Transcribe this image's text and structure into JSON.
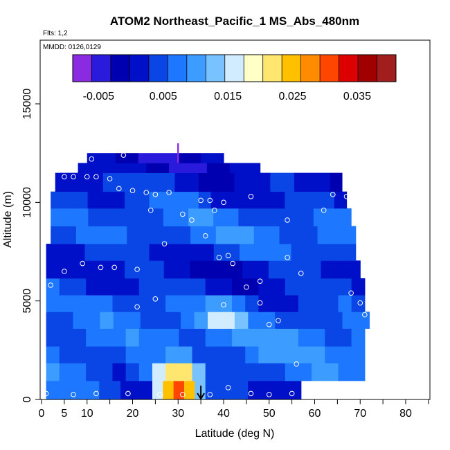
{
  "chart_data": {
    "type": "heatmap",
    "title": "ATOM2 Northeast_Pacific_1 MS_Abs_480nm",
    "flights_label": "Flts: 1,2",
    "dates_label": "MMDD: 0126,0129",
    "xlabel": "Latitude (deg N)",
    "ylabel": "Altitude (m)",
    "xlim": [
      0,
      85
    ],
    "ylim": [
      0,
      18000
    ],
    "x_tick_labels": [
      "0",
      "5",
      "10",
      "20",
      "30",
      "40",
      "50",
      "60",
      "70",
      "80"
    ],
    "x_tick_values": [
      0,
      5,
      10,
      20,
      30,
      40,
      50,
      60,
      70,
      80
    ],
    "x_minor_ticks": [
      15,
      25,
      35,
      45,
      55,
      65,
      75,
      85
    ],
    "y_tick_labels": [
      "0",
      "5000",
      "10000",
      "15000"
    ],
    "y_tick_values": [
      0,
      5000,
      10000,
      15000
    ],
    "colorbar": {
      "range": [
        -0.009,
        0.041
      ],
      "tick_labels": [
        "-0.005",
        "0.005",
        "0.015",
        "0.025",
        "0.035"
      ],
      "tick_values": [
        -0.005,
        0.005,
        0.015,
        0.025,
        0.035
      ],
      "colors": [
        "#8a2be2",
        "#2a1bdc",
        "#0000b0",
        "#0010c8",
        "#0a46e6",
        "#1e78ff",
        "#3c9cff",
        "#78c3ff",
        "#d2ecff",
        "#ffffc8",
        "#ffe66e",
        "#ffc000",
        "#ff8c00",
        "#ff4600",
        "#dc0000",
        "#a00000",
        "#a01e1e"
      ]
    },
    "field": {
      "background_value": 0.004,
      "high_zone_value": 0.001,
      "upper_zone_value": 0.0,
      "layers": [
        {
          "alt": [
            0,
            950
          ],
          "x": [
            1,
            57
          ],
          "v": 0.004
        },
        {
          "alt": [
            950,
            1850
          ],
          "x": [
            1,
            71
          ],
          "v": 0.006
        },
        {
          "alt": [
            1850,
            2700
          ],
          "x": [
            1,
            71
          ],
          "v": 0.007
        },
        {
          "alt": [
            2700,
            3600
          ],
          "x": [
            1,
            71
          ],
          "v": 0.007
        },
        {
          "alt": [
            3600,
            4450
          ],
          "x": [
            1,
            72
          ],
          "v": 0.006
        },
        {
          "alt": [
            4450,
            5300
          ],
          "x": [
            1,
            71
          ],
          "v": 0.005
        },
        {
          "alt": [
            5300,
            6150
          ],
          "x": [
            1,
            71
          ],
          "v": 0.003
        },
        {
          "alt": [
            6150,
            7050
          ],
          "x": [
            1,
            70
          ],
          "v": 0.002
        },
        {
          "alt": [
            7050,
            7900
          ],
          "x": [
            1,
            69
          ],
          "v": 0.004
        },
        {
          "alt": [
            7900,
            8800
          ],
          "x": [
            2,
            69
          ],
          "v": 0.006
        },
        {
          "alt": [
            8800,
            9700
          ],
          "x": [
            2,
            68
          ],
          "v": 0.005
        },
        {
          "alt": [
            9700,
            10550
          ],
          "x": [
            2,
            67
          ],
          "v": 0.003
        },
        {
          "alt": [
            10550,
            11500
          ],
          "x": [
            3,
            66
          ],
          "v": 0.002
        },
        {
          "alt": [
            11500,
            12000
          ],
          "x": [
            8,
            48
          ],
          "v": 0.0
        },
        {
          "alt": [
            12000,
            12500
          ],
          "x": [
            10,
            40
          ],
          "v": 0.0
        }
      ],
      "hotspots": [
        {
          "x": 30,
          "alt": 600,
          "dx": 5,
          "dalt": 700,
          "v": 0.032
        },
        {
          "x": 30,
          "alt": 1400,
          "dx": 6,
          "dalt": 900,
          "v": 0.024
        },
        {
          "x": 40,
          "alt": 4200,
          "dx": 8,
          "dalt": 900,
          "v": 0.016
        },
        {
          "x": 62,
          "alt": 3600,
          "dx": 8,
          "dalt": 300,
          "v": 0.018
        }
      ],
      "arrow": {
        "x": 35,
        "alt_top": 700,
        "alt_bottom": 0
      },
      "vertical_marker": {
        "x": 30,
        "alt_top": 13000,
        "alt_bottom": 12000
      }
    },
    "sample_points": [
      [
        1,
        300
      ],
      [
        7,
        250
      ],
      [
        12,
        300
      ],
      [
        19,
        300
      ],
      [
        26,
        250
      ],
      [
        31,
        250
      ],
      [
        37,
        250
      ],
      [
        41,
        600
      ],
      [
        46,
        300
      ],
      [
        50,
        250
      ],
      [
        55,
        300
      ],
      [
        70,
        700
      ],
      [
        21,
        4700
      ],
      [
        25,
        5100
      ],
      [
        40,
        4800
      ],
      [
        48,
        4900
      ],
      [
        50,
        3800
      ],
      [
        52,
        4000
      ],
      [
        56,
        1800
      ],
      [
        71,
        4300
      ],
      [
        2,
        5800
      ],
      [
        5,
        6500
      ],
      [
        9,
        6900
      ],
      [
        13,
        6700
      ],
      [
        16,
        6700
      ],
      [
        21,
        6600
      ],
      [
        39,
        7200
      ],
      [
        42,
        6900
      ],
      [
        45,
        5700
      ],
      [
        48,
        6000
      ],
      [
        57,
        6400
      ],
      [
        68,
        5400
      ],
      [
        70,
        4900
      ],
      [
        27,
        7900
      ],
      [
        36,
        8300
      ],
      [
        41,
        7300
      ],
      [
        54,
        7200
      ],
      [
        5,
        11300
      ],
      [
        7,
        11300
      ],
      [
        10,
        11300
      ],
      [
        12,
        11300
      ],
      [
        15,
        11200
      ],
      [
        17,
        10700
      ],
      [
        20,
        10600
      ],
      [
        23,
        10500
      ],
      [
        25,
        10400
      ],
      [
        28,
        10500
      ],
      [
        35,
        10100
      ],
      [
        37,
        10100
      ],
      [
        40,
        10000
      ],
      [
        46,
        10300
      ],
      [
        64,
        10400
      ],
      [
        67,
        10300
      ],
      [
        70,
        11000
      ],
      [
        24,
        9600
      ],
      [
        31,
        9400
      ],
      [
        33,
        9100
      ],
      [
        38,
        9600
      ],
      [
        54,
        9100
      ],
      [
        62,
        9600
      ],
      [
        11,
        12200
      ],
      [
        18,
        12400
      ]
    ]
  }
}
